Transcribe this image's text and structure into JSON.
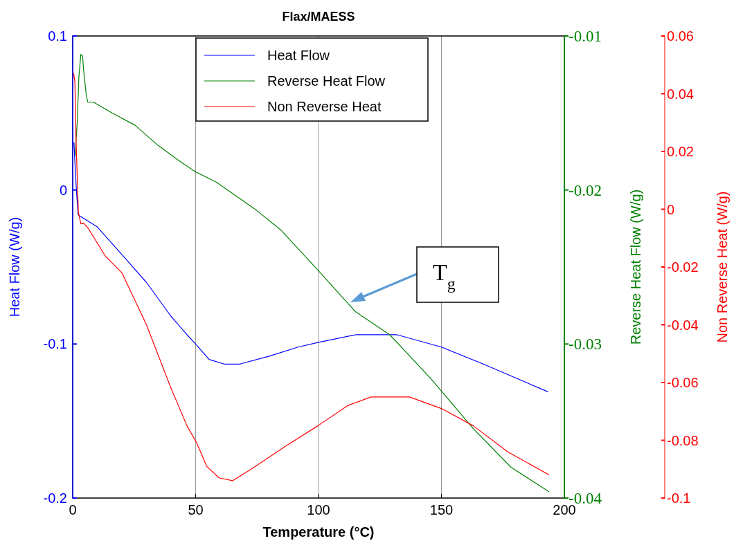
{
  "chart_data": {
    "type": "line",
    "title": "Flax/MAESS",
    "xlabel": "Temperature (°C)",
    "ylabel": "Heat Flow (W/g)",
    "y2label": "Reverse Heat Flow (W/g)",
    "y3label": "Non Reverse Heat (W/g)",
    "xlim": [
      0,
      200
    ],
    "xticks": [
      0,
      50,
      100,
      150,
      200
    ],
    "ylim": [
      -0.2,
      0.1
    ],
    "yticks": [
      -0.2,
      -0.1,
      0,
      0.1
    ],
    "y2lim": [
      -0.04,
      -0.01
    ],
    "y2ticks": [
      -0.04,
      -0.03,
      -0.02,
      -0.01
    ],
    "y3lim": [
      -0.1,
      0.06
    ],
    "y3ticks": [
      -0.1,
      -0.08,
      -0.06,
      -0.04,
      -0.02,
      0,
      0.02,
      0.04,
      0.06
    ],
    "grid": "x",
    "legend": "top",
    "line_style": "solid",
    "annotations": [
      "T$_{g}$"
    ],
    "series": [
      {
        "name": "Heat Flow",
        "color": "#0000ff",
        "x": [
          0.5,
          1,
          1.5,
          2.2,
          3,
          10,
          20.6,
          30,
          40,
          46.5,
          50,
          55.5,
          61.6,
          68,
          79.7,
          91.7,
          99.7,
          115,
          132,
          150,
          167,
          193.3
        ],
        "values": [
          0.031,
          0.015,
          0.0,
          -0.016,
          -0.017,
          -0.024,
          -0.043,
          -0.06,
          -0.082,
          -0.094,
          -0.1,
          -0.11,
          -0.113,
          -0.113,
          -0.108,
          -0.102,
          -0.099,
          -0.094,
          -0.094,
          -0.102,
          -0.113,
          -0.131
        ]
      },
      {
        "name": "Reverse Heat Flow",
        "color": "#008000",
        "axis": "y2",
        "x": [
          1,
          1.9,
          2.5,
          3.3,
          4,
          4.6,
          5.5,
          6.1,
          8.5,
          16,
          25.4,
          34.7,
          44.1,
          49.8,
          58.5,
          74.6,
          84.7,
          99.7,
          115,
          129,
          146,
          163,
          178.3,
          193.8
        ],
        "values": [
          -0.0178,
          -0.0154,
          -0.0127,
          -0.0112,
          -0.0113,
          -0.0125,
          -0.0138,
          -0.0143,
          -0.0143,
          -0.015,
          -0.0158,
          -0.0171,
          -0.0182,
          -0.0188,
          -0.0195,
          -0.0213,
          -0.0226,
          -0.0252,
          -0.0279,
          -0.0294,
          -0.0323,
          -0.0355,
          -0.038,
          -0.0396
        ]
      },
      {
        "name": "Non Reverse Heat",
        "color": "#ff0000",
        "axis": "y3",
        "x": [
          0.4,
          0.9,
          1.4,
          2.3,
          3.3,
          4.7,
          6.6,
          13.1,
          20,
          30,
          40,
          46.5,
          50.5,
          54.5,
          59.5,
          65,
          72.6,
          86.7,
          99.7,
          111.8,
          121.4,
          137,
          150,
          163,
          177,
          193.8
        ],
        "values": [
          0.047,
          0.044,
          0.023,
          -0.001,
          -0.005,
          -0.005,
          -0.007,
          -0.016,
          -0.022,
          -0.04,
          -0.062,
          -0.075,
          -0.081,
          -0.089,
          -0.093,
          -0.094,
          -0.09,
          -0.082,
          -0.075,
          -0.068,
          -0.065,
          -0.065,
          -0.069,
          -0.075,
          -0.084,
          -0.092
        ]
      }
    ]
  }
}
